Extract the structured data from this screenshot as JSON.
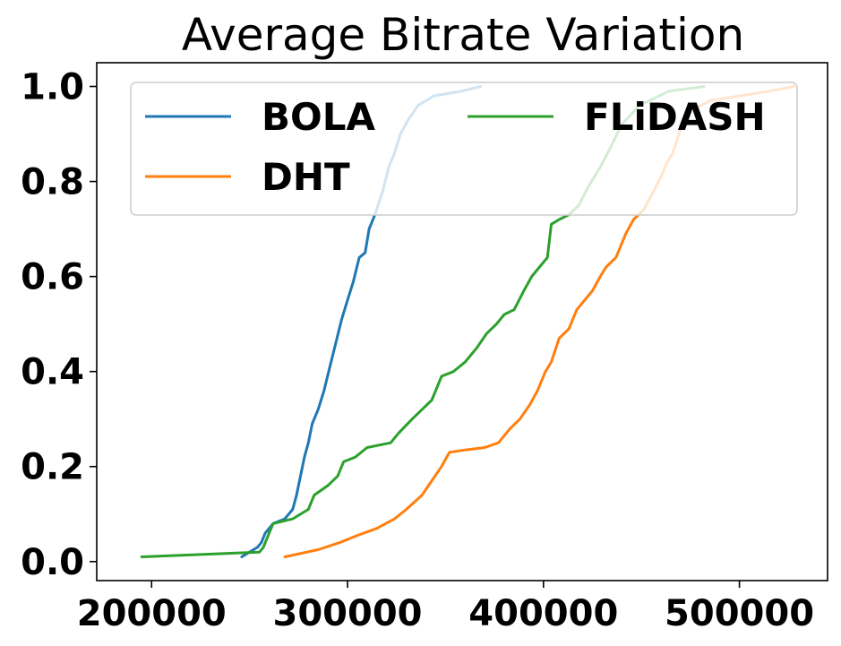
{
  "chart_data": {
    "type": "line",
    "title": "Average Bitrate Variation",
    "xlabel": "",
    "ylabel": "",
    "xlim": [
      172000,
      545000
    ],
    "ylim": [
      -0.04,
      1.05
    ],
    "xticks": [
      200000,
      300000,
      400000,
      500000
    ],
    "xtick_labels": [
      "200000",
      "300000",
      "400000",
      "500000"
    ],
    "yticks": [
      0.0,
      0.2,
      0.4,
      0.6,
      0.8,
      1.0
    ],
    "ytick_labels": [
      "0.0",
      "0.2",
      "0.4",
      "0.6",
      "0.8",
      "1.0"
    ],
    "grid": false,
    "legend": {
      "placement": "top",
      "columns": 2
    },
    "series": [
      {
        "name": "BOLA",
        "color": "#1f77b4",
        "points": [
          [
            246000,
            0.01
          ],
          [
            250000,
            0.02
          ],
          [
            254000,
            0.03
          ],
          [
            256000,
            0.04
          ],
          [
            258000,
            0.06
          ],
          [
            262000,
            0.08
          ],
          [
            268000,
            0.09
          ],
          [
            272000,
            0.11
          ],
          [
            274000,
            0.14
          ],
          [
            276000,
            0.18
          ],
          [
            278000,
            0.22
          ],
          [
            280000,
            0.25
          ],
          [
            282000,
            0.29
          ],
          [
            285000,
            0.32
          ],
          [
            288000,
            0.36
          ],
          [
            291000,
            0.41
          ],
          [
            294000,
            0.46
          ],
          [
            297000,
            0.51
          ],
          [
            300000,
            0.55
          ],
          [
            303000,
            0.59
          ],
          [
            306000,
            0.64
          ],
          [
            309000,
            0.65
          ],
          [
            311000,
            0.7
          ],
          [
            314000,
            0.73
          ],
          [
            318000,
            0.78
          ],
          [
            321000,
            0.83
          ],
          [
            324000,
            0.86
          ],
          [
            327000,
            0.9
          ],
          [
            331000,
            0.93
          ],
          [
            336000,
            0.96
          ],
          [
            344000,
            0.98
          ],
          [
            358000,
            0.99
          ],
          [
            368000,
            1.0
          ]
        ]
      },
      {
        "name": "DHT",
        "color": "#ff7f0e",
        "points": [
          [
            268000,
            0.01
          ],
          [
            285000,
            0.025
          ],
          [
            296000,
            0.04
          ],
          [
            305000,
            0.055
          ],
          [
            315000,
            0.07
          ],
          [
            324000,
            0.09
          ],
          [
            330000,
            0.11
          ],
          [
            338000,
            0.14
          ],
          [
            343000,
            0.17
          ],
          [
            348000,
            0.2
          ],
          [
            352000,
            0.23
          ],
          [
            360000,
            0.235
          ],
          [
            370000,
            0.24
          ],
          [
            377000,
            0.25
          ],
          [
            383000,
            0.28
          ],
          [
            388000,
            0.3
          ],
          [
            393000,
            0.33
          ],
          [
            397000,
            0.36
          ],
          [
            401000,
            0.4
          ],
          [
            404000,
            0.42
          ],
          [
            408000,
            0.47
          ],
          [
            413000,
            0.49
          ],
          [
            417000,
            0.53
          ],
          [
            421000,
            0.55
          ],
          [
            425000,
            0.57
          ],
          [
            429000,
            0.6
          ],
          [
            432000,
            0.62
          ],
          [
            437000,
            0.64
          ],
          [
            442000,
            0.69
          ],
          [
            446000,
            0.72
          ],
          [
            451000,
            0.74
          ],
          [
            455000,
            0.77
          ],
          [
            460000,
            0.81
          ],
          [
            463000,
            0.84
          ],
          [
            466000,
            0.86
          ],
          [
            470000,
            0.91
          ],
          [
            476000,
            0.95
          ],
          [
            485000,
            0.97
          ],
          [
            500000,
            0.98
          ],
          [
            515000,
            0.99
          ],
          [
            528000,
            1.0
          ]
        ]
      },
      {
        "name": "FLiDASH",
        "color": "#2ca02c",
        "points": [
          [
            195000,
            0.01
          ],
          [
            255000,
            0.02
          ],
          [
            257000,
            0.03
          ],
          [
            260000,
            0.06
          ],
          [
            262000,
            0.08
          ],
          [
            272000,
            0.09
          ],
          [
            280000,
            0.11
          ],
          [
            283000,
            0.14
          ],
          [
            290000,
            0.16
          ],
          [
            295000,
            0.18
          ],
          [
            298000,
            0.21
          ],
          [
            304000,
            0.22
          ],
          [
            310000,
            0.24
          ],
          [
            322000,
            0.25
          ],
          [
            326000,
            0.27
          ],
          [
            333000,
            0.3
          ],
          [
            338000,
            0.32
          ],
          [
            343000,
            0.34
          ],
          [
            345000,
            0.36
          ],
          [
            348000,
            0.39
          ],
          [
            354000,
            0.4
          ],
          [
            360000,
            0.42
          ],
          [
            366000,
            0.45
          ],
          [
            371000,
            0.48
          ],
          [
            376000,
            0.5
          ],
          [
            380000,
            0.52
          ],
          [
            385000,
            0.53
          ],
          [
            390000,
            0.57
          ],
          [
            394000,
            0.6
          ],
          [
            398000,
            0.62
          ],
          [
            402000,
            0.64
          ],
          [
            404000,
            0.71
          ],
          [
            408000,
            0.72
          ],
          [
            413000,
            0.73
          ],
          [
            418000,
            0.75
          ],
          [
            423000,
            0.79
          ],
          [
            429000,
            0.83
          ],
          [
            434000,
            0.87
          ],
          [
            440000,
            0.92
          ],
          [
            449000,
            0.96
          ],
          [
            464000,
            0.99
          ],
          [
            482000,
            1.0
          ]
        ]
      }
    ]
  }
}
